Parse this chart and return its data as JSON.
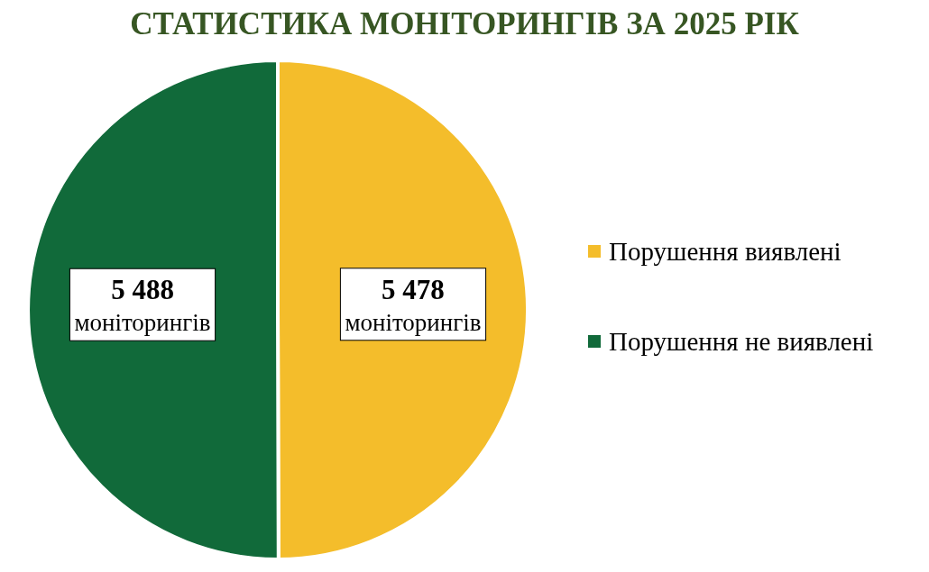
{
  "chart_data": {
    "type": "pie",
    "title": "СТАТИСТИКА МОНІТОРИНГІВ ЗА 2025 РІК",
    "categories": [
      "Порушення виявлені",
      "Порушення не виявлені"
    ],
    "values": [
      5478,
      5488
    ],
    "colors": [
      "#f4bd2b",
      "#116a3a"
    ],
    "value_labels": [
      "5 478 моніторингів",
      "5 488 моніторингів"
    ],
    "legend": "right"
  }
}
